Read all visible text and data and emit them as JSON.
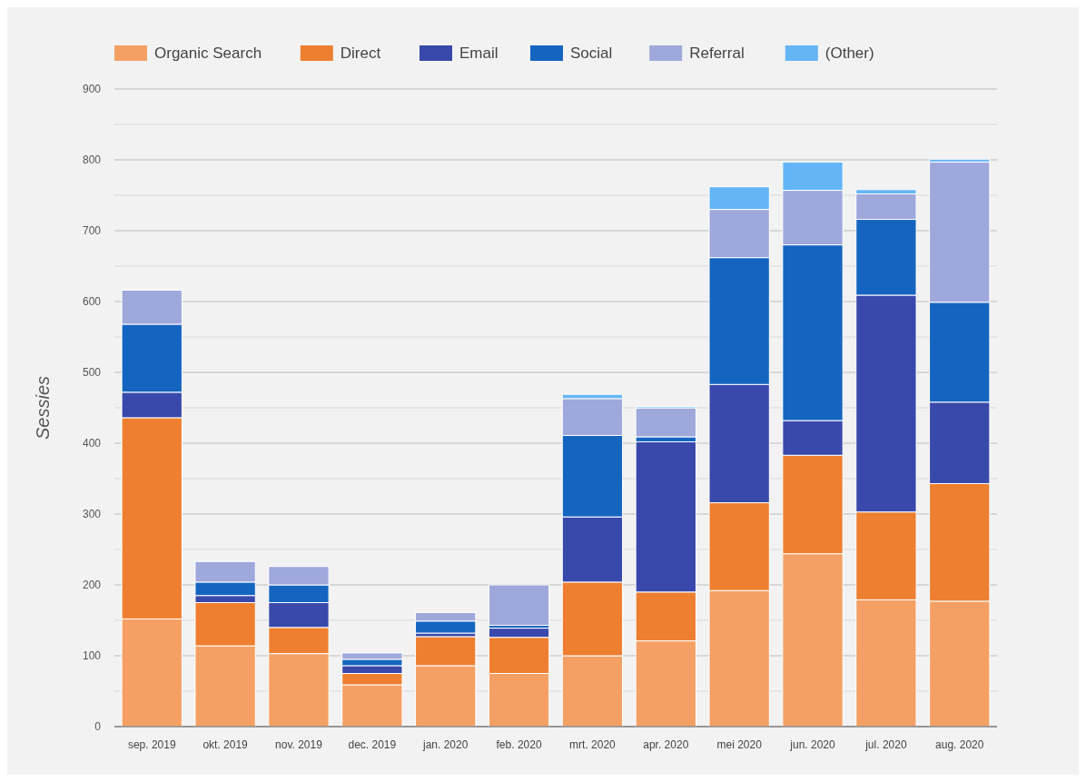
{
  "chart_data": {
    "type": "bar",
    "stacked": true,
    "ylabel": "Sessies",
    "legend": "top left",
    "grid": "y",
    "categories": [
      "sep. 2019",
      "okt. 2019",
      "nov. 2019",
      "dec. 2019",
      "jan. 2020",
      "feb. 2020",
      "mrt. 2020",
      "apr. 2020",
      "mei 2020",
      "jun. 2020",
      "jul. 2020",
      "aug. 2020"
    ],
    "ylim": [
      0,
      900
    ],
    "yticks": [
      0,
      {
        "value": 50,
        "label": null
      },
      100,
      {
        "value": 150,
        "label": null
      },
      200,
      {
        "value": 250,
        "label": null
      },
      300,
      {
        "value": 350,
        "label": null
      },
      400,
      {
        "value": 450,
        "label": null
      },
      500,
      {
        "value": 550,
        "label": null
      },
      600,
      {
        "value": 650,
        "label": null
      },
      700,
      {
        "value": 750,
        "label": null
      },
      800,
      {
        "value": 850,
        "label": null
      },
      900
    ],
    "series": [
      {
        "name": "Organic Search",
        "color": "#f4a064",
        "values": [
          152,
          114,
          103,
          59,
          86,
          75,
          100,
          121,
          192,
          244,
          179,
          177
        ]
      },
      {
        "name": "Direct",
        "color": "#ee7f30",
        "values": [
          284,
          61,
          37,
          16,
          41,
          51,
          104,
          69,
          124,
          139,
          124,
          166
        ]
      },
      {
        "name": "Email",
        "color": "#3949ab",
        "values": [
          36,
          10,
          35,
          11,
          5,
          13,
          92,
          212,
          167,
          49,
          306,
          115
        ]
      },
      {
        "name": "Social",
        "color": "#1565c0",
        "values": [
          96,
          19,
          25,
          9,
          17,
          4,
          115,
          7,
          179,
          248,
          107,
          141
        ]
      },
      {
        "name": "Referral",
        "color": "#9fa8da",
        "values": [
          48,
          29,
          26,
          9,
          12,
          57,
          52,
          41,
          68,
          77,
          36,
          198
        ]
      },
      {
        "name": "(Other)",
        "color": "#64b5f6",
        "values": [
          0,
          0,
          0,
          0,
          0,
          0,
          6,
          2,
          32,
          40,
          6,
          4
        ]
      }
    ]
  }
}
